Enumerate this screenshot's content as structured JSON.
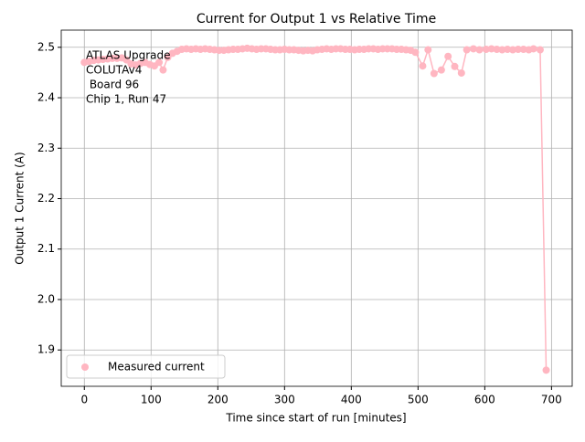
{
  "chart_data": {
    "type": "line",
    "title": "Current for Output 1 vs Relative Time",
    "x_label": "Time since start of run [minutes]",
    "y_label": "Output 1 Current (A)",
    "annotation": [
      "ATLAS Upgrade",
      "COLUTAv4",
      " Board 96",
      "Chip 1, Run 47"
    ],
    "xlim": [
      -34.6,
      731
    ],
    "ylim": [
      1.828,
      2.534
    ],
    "xticks": [
      0,
      100,
      200,
      300,
      400,
      500,
      600,
      700
    ],
    "yticks": [
      1.9,
      {
        "value": 2,
        "label": "2.0"
      },
      2.1,
      2.2,
      2.3,
      2.4,
      2.5
    ],
    "grid": true,
    "legend": "lower left",
    "marker": true,
    "x": [
      0,
      7,
      14,
      21,
      28,
      35,
      42,
      49,
      56,
      63,
      70,
      77,
      84,
      91,
      98,
      105,
      112,
      118,
      125,
      132,
      139,
      146,
      153,
      160,
      167,
      174,
      181,
      188,
      195,
      202,
      209,
      216,
      223,
      230,
      237,
      244,
      251,
      258,
      265,
      272,
      279,
      286,
      293,
      300,
      307,
      314,
      321,
      328,
      335,
      342,
      349,
      356,
      363,
      370,
      377,
      384,
      391,
      398,
      405,
      412,
      419,
      426,
      433,
      440,
      447,
      454,
      461,
      468,
      475,
      482,
      489,
      496,
      507,
      515,
      524,
      535,
      545,
      555,
      565,
      573,
      583,
      592,
      602,
      610,
      618,
      626,
      634,
      642,
      650,
      658,
      666,
      673,
      683,
      692
    ],
    "series": [
      {
        "name": "Measured current",
        "color": "#ffb6c1",
        "values": [
          2.47,
          2.472,
          2.474,
          2.475,
          2.476,
          2.477,
          2.478,
          2.478,
          2.479,
          2.475,
          2.467,
          2.465,
          2.468,
          2.47,
          2.466,
          2.463,
          2.47,
          2.455,
          2.48,
          2.488,
          2.492,
          2.496,
          2.497,
          2.496,
          2.497,
          2.496,
          2.497,
          2.496,
          2.495,
          2.494,
          2.494,
          2.495,
          2.496,
          2.496,
          2.497,
          2.498,
          2.497,
          2.496,
          2.497,
          2.497,
          2.496,
          2.495,
          2.495,
          2.496,
          2.495,
          2.495,
          2.494,
          2.493,
          2.494,
          2.493,
          2.495,
          2.496,
          2.497,
          2.496,
          2.497,
          2.497,
          2.496,
          2.496,
          2.495,
          2.496,
          2.496,
          2.497,
          2.497,
          2.496,
          2.497,
          2.497,
          2.497,
          2.496,
          2.496,
          2.495,
          2.494,
          2.49,
          2.463,
          2.495,
          2.448,
          2.455,
          2.482,
          2.462,
          2.449,
          2.495,
          2.497,
          2.495,
          2.496,
          2.497,
          2.496,
          2.495,
          2.496,
          2.495,
          2.496,
          2.496,
          2.495,
          2.497,
          2.495,
          1.86
        ]
      }
    ]
  }
}
